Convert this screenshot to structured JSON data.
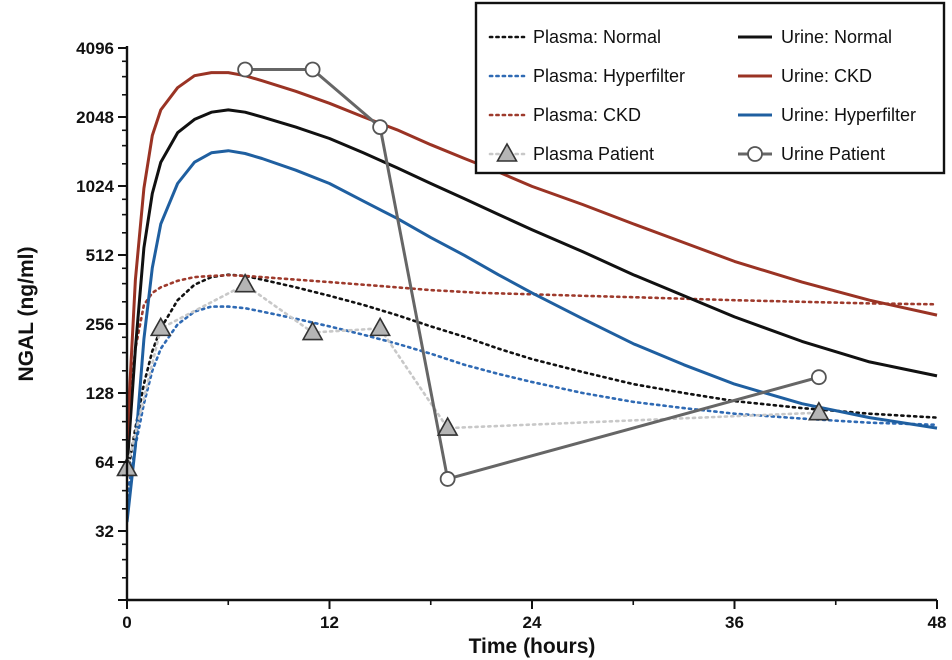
{
  "chart_data": {
    "type": "line",
    "xlabel": "Time (hours)",
    "ylabel": "NGAL (ng/ml)",
    "x_ticks": [
      0,
      12,
      24,
      36,
      48
    ],
    "y_ticks": [
      32,
      64,
      128,
      256,
      512,
      1024,
      2048,
      4096
    ],
    "xlim": [
      0,
      48
    ],
    "ylim": [
      16,
      4096
    ],
    "y_scale": "log2",
    "grid": false,
    "legend_position": "top-right",
    "series": [
      {
        "name": "Plasma: Normal",
        "style": "dotted",
        "color": "#111111",
        "x": [
          0,
          0.5,
          1,
          1.5,
          2,
          3,
          4,
          5,
          6,
          7,
          8,
          10,
          12,
          14,
          16,
          18,
          20,
          22,
          24,
          27,
          30,
          33,
          36,
          40,
          44,
          48
        ],
        "y": [
          55,
          90,
          140,
          195,
          245,
          325,
          380,
          410,
          420,
          415,
          400,
          370,
          340,
          310,
          280,
          250,
          225,
          200,
          180,
          158,
          140,
          128,
          118,
          110,
          104,
          100
        ]
      },
      {
        "name": "Plasma: Hyperfilter",
        "style": "dotted",
        "color": "#2f6ab4",
        "x": [
          0,
          0.5,
          1,
          1.5,
          2,
          3,
          4,
          5,
          6,
          7,
          8,
          10,
          12,
          14,
          16,
          18,
          20,
          22,
          24,
          27,
          30,
          33,
          36,
          40,
          44,
          48
        ],
        "y": [
          45,
          75,
          115,
          160,
          200,
          255,
          290,
          305,
          305,
          300,
          290,
          270,
          250,
          230,
          210,
          190,
          170,
          155,
          143,
          128,
          117,
          110,
          104,
          99,
          95,
          93
        ]
      },
      {
        "name": "Plasma: CKD",
        "style": "dotted",
        "color": "#9e3a2c",
        "x": [
          0,
          0.5,
          1,
          1.5,
          2,
          3,
          4,
          5,
          6,
          7,
          8,
          10,
          12,
          15,
          18,
          21,
          24,
          27,
          30,
          33,
          36,
          40,
          44,
          48
        ],
        "y": [
          90,
          200,
          310,
          350,
          370,
          395,
          410,
          415,
          418,
          415,
          410,
          400,
          390,
          375,
          360,
          350,
          345,
          340,
          335,
          330,
          325,
          320,
          315,
          312
        ]
      },
      {
        "name": "Urine: Normal",
        "style": "solid",
        "color": "#111111",
        "x": [
          0,
          0.5,
          1,
          1.5,
          2,
          3,
          4,
          5,
          6,
          7,
          8,
          10,
          12,
          14,
          16,
          18,
          20,
          22,
          24,
          27,
          30,
          33,
          36,
          40,
          44,
          48
        ],
        "y": [
          60,
          200,
          550,
          950,
          1300,
          1750,
          2000,
          2150,
          2200,
          2150,
          2050,
          1850,
          1650,
          1430,
          1230,
          1050,
          900,
          770,
          660,
          530,
          420,
          340,
          275,
          215,
          175,
          152
        ]
      },
      {
        "name": "Urine: CKD",
        "style": "solid",
        "color": "#9a3324",
        "x": [
          0,
          0.5,
          1,
          1.5,
          2,
          3,
          4,
          5,
          6,
          7,
          8,
          10,
          12,
          14,
          16,
          18,
          20,
          22,
          24,
          27,
          30,
          33,
          36,
          40,
          44,
          48
        ],
        "y": [
          80,
          400,
          1000,
          1700,
          2200,
          2750,
          3100,
          3200,
          3200,
          3100,
          2950,
          2650,
          2350,
          2050,
          1800,
          1550,
          1350,
          1180,
          1020,
          850,
          700,
          580,
          480,
          390,
          325,
          280
        ]
      },
      {
        "name": "Urine: Hyperfilter",
        "style": "solid",
        "color": "#1f5fa0",
        "x": [
          0,
          0.5,
          1,
          1.5,
          2,
          3,
          4,
          5,
          6,
          7,
          8,
          10,
          12,
          14,
          16,
          18,
          20,
          22,
          24,
          27,
          30,
          33,
          36,
          40,
          44,
          48
        ],
        "y": [
          35,
          75,
          220,
          450,
          700,
          1050,
          1300,
          1430,
          1460,
          1420,
          1350,
          1200,
          1050,
          880,
          740,
          610,
          510,
          420,
          350,
          270,
          210,
          170,
          140,
          115,
          100,
          90
        ]
      },
      {
        "name": "Plasma Patient",
        "style": "dotted-markers",
        "color": "#c8c8c8",
        "marker": "triangle",
        "x": [
          0,
          2,
          7,
          11,
          15,
          19,
          41
        ],
        "y": [
          60,
          245,
          380,
          235,
          245,
          90,
          105
        ]
      },
      {
        "name": "Urine Patient",
        "style": "solid-markers",
        "color": "#666666",
        "marker": "circle",
        "x": [
          7,
          11,
          15,
          19,
          41
        ],
        "y": [
          3300,
          3300,
          1850,
          54,
          150
        ]
      }
    ]
  }
}
